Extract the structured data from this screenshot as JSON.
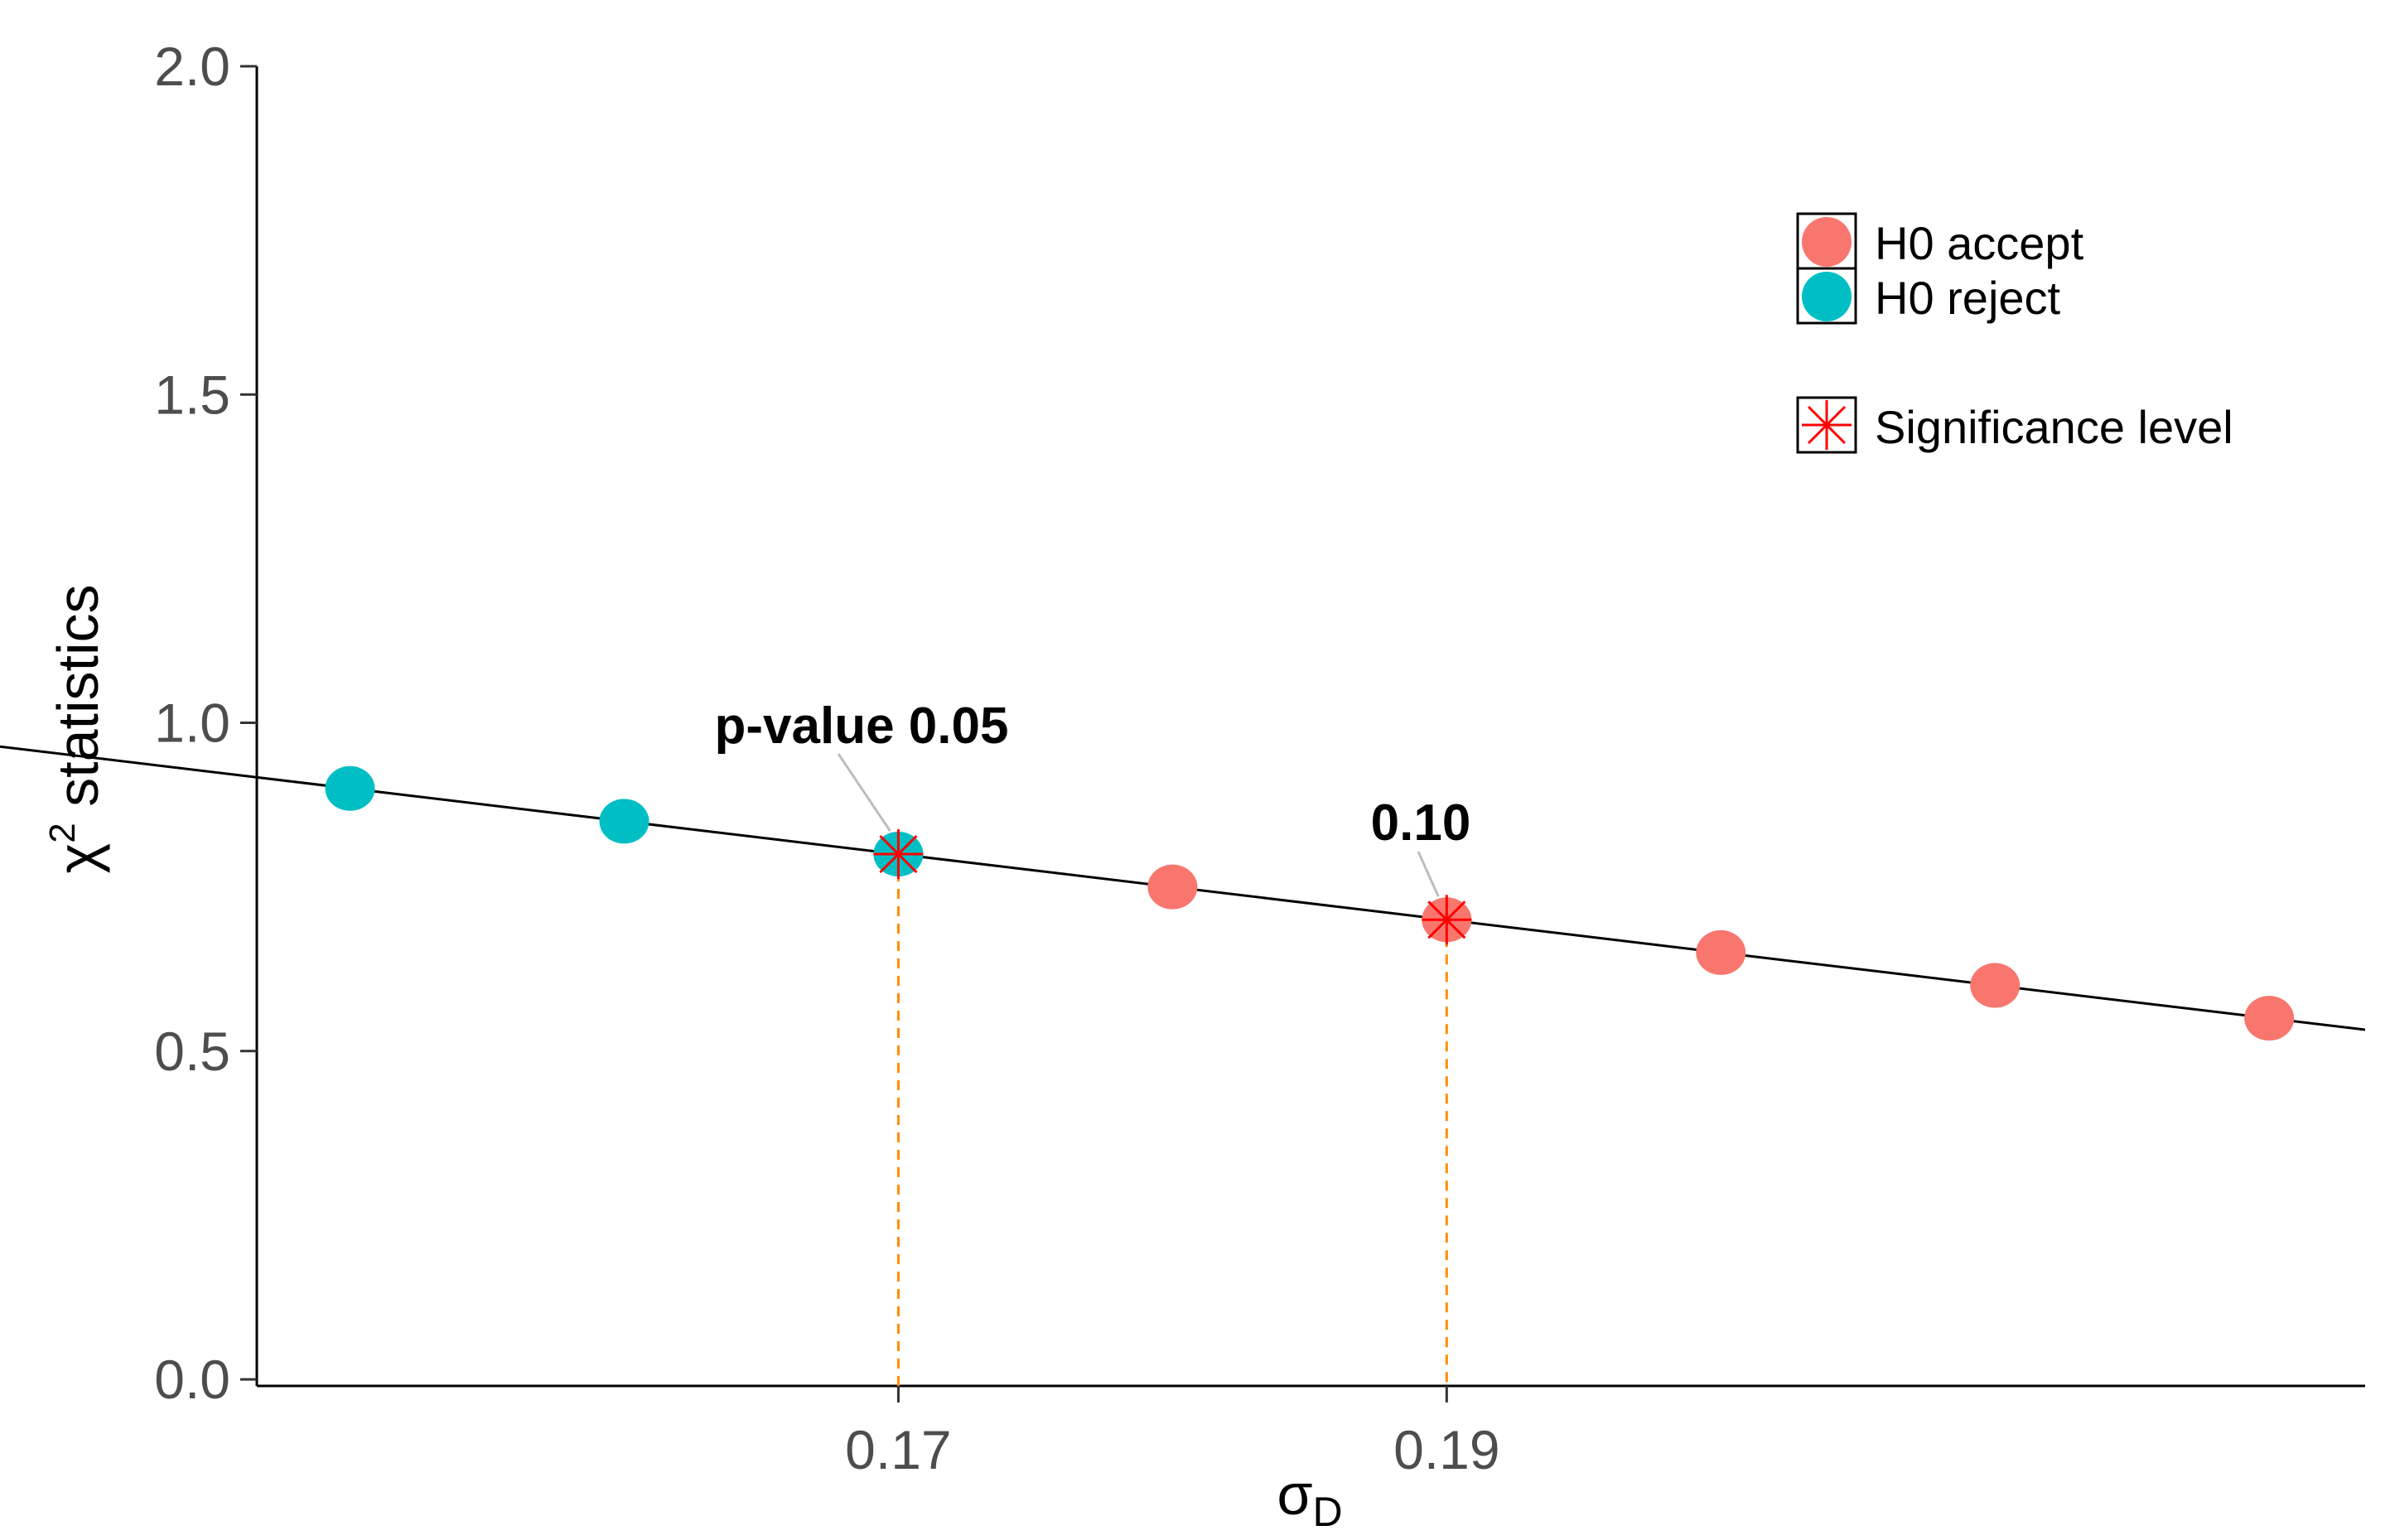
{
  "chart_data": {
    "type": "scatter",
    "x": [
      0.15,
      0.16,
      0.17,
      0.18,
      0.19,
      0.2,
      0.21,
      0.22
    ],
    "y": [
      0.9,
      0.85,
      0.8,
      0.75,
      0.7,
      0.65,
      0.6,
      0.55
    ],
    "groups": [
      "H0 reject",
      "H0 reject",
      "H0 reject",
      "H0 accept",
      "H0 accept",
      "H0 accept",
      "H0 accept",
      "H0 accept"
    ],
    "line": {
      "x": [
        0.146,
        0.2235
      ],
      "y": [
        0.92,
        0.5325
      ]
    },
    "significance_points": [
      {
        "x": 0.17,
        "y": 0.8,
        "label": "p-value 0.05"
      },
      {
        "x": 0.19,
        "y": 0.7,
        "label": "0.10"
      }
    ],
    "xlabel": "σ",
    "xlabel_sub": "D",
    "ylabel": "χ",
    "ylabel_sup": "2",
    "ylabel_rest": " statistics",
    "xlim": [
      0.1466,
      0.2235
    ],
    "ylim": [
      -0.01,
      2.0
    ],
    "xticks": [
      0.17,
      0.19
    ],
    "xtick_labels": [
      "0.17",
      "0.19"
    ],
    "yticks": [
      0.0,
      0.5,
      1.0,
      1.5,
      2.0
    ],
    "ytick_labels": [
      "0.0",
      "0.5",
      "1.0",
      "1.5",
      "2.0"
    ],
    "grid": false,
    "legend": {
      "position": "top-right",
      "items": [
        {
          "label": "H0 accept",
          "color": "#F8766D"
        },
        {
          "label": "H0 reject",
          "color": "#00BFC4"
        }
      ],
      "significance_label": "Significance level"
    },
    "colors": {
      "accept": "#F8766D",
      "reject": "#00BFC4",
      "line": "#000000",
      "vline": "#FF8C00",
      "star": "#FF0000"
    }
  }
}
